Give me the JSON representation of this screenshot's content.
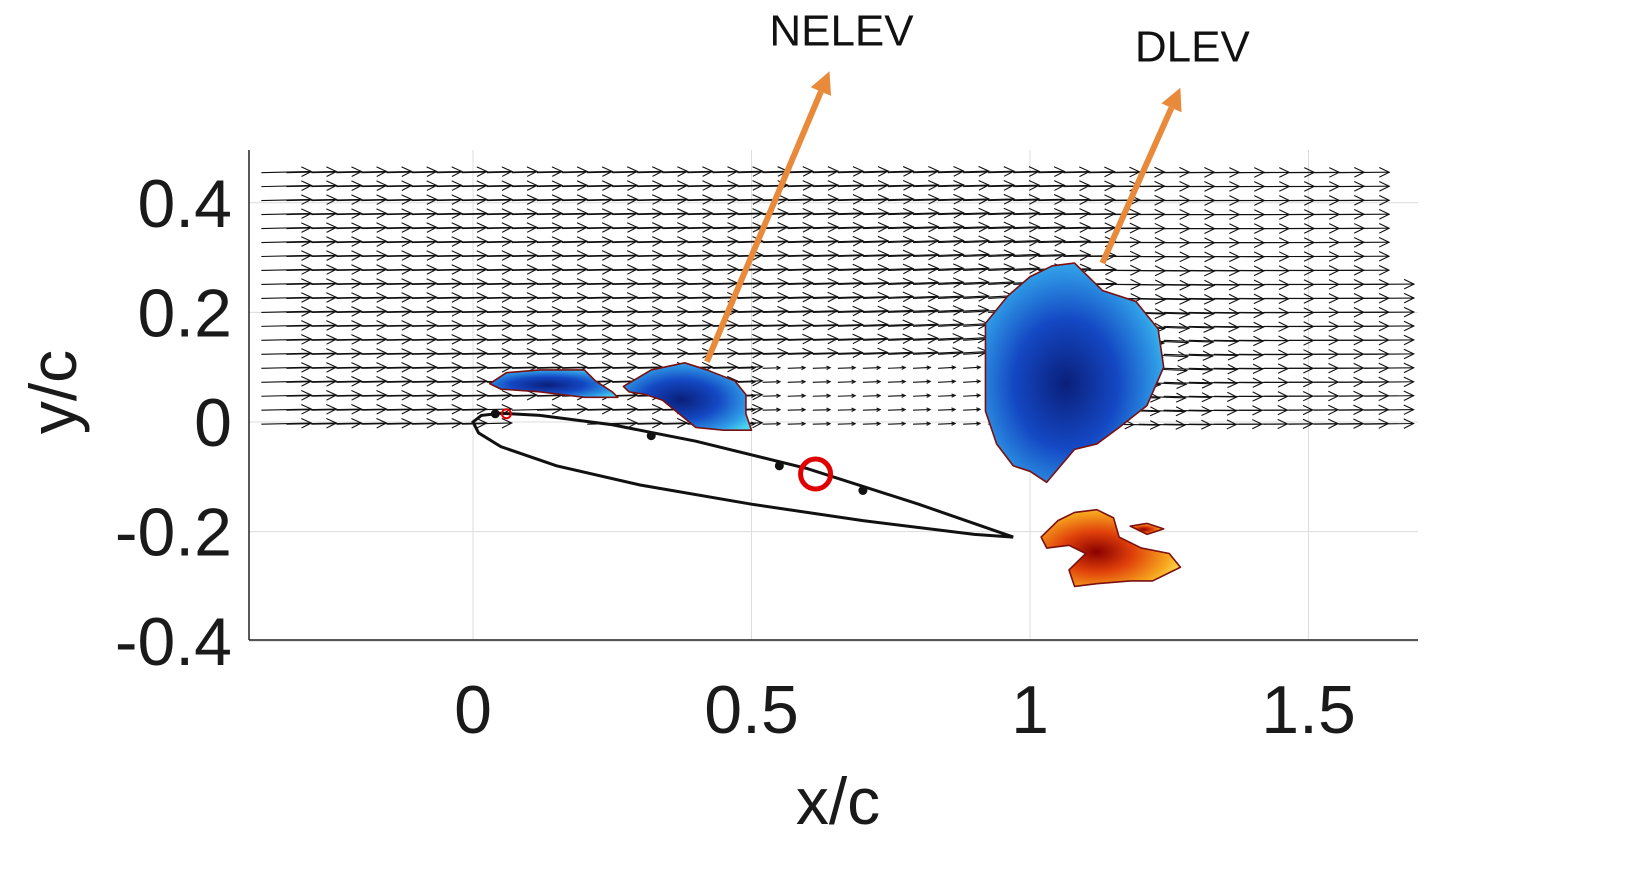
{
  "chart_data": {
    "type": "scatter",
    "title": "",
    "xlabel": "x/c",
    "ylabel": "y/c",
    "xlim": [
      -0.4,
      1.7
    ],
    "ylim": [
      -0.4,
      0.5
    ],
    "xticks": [
      0,
      0.5,
      1,
      1.5
    ],
    "xtick_labels": [
      "0",
      "0.5",
      "1",
      "1.5"
    ],
    "yticks": [
      -0.4,
      -0.2,
      0,
      0.2,
      0.4
    ],
    "ytick_labels": [
      "-0.4",
      "-0.2",
      "0",
      "0.2",
      "0.4"
    ],
    "grid": true,
    "series": [
      {
        "name": "airfoil",
        "kind": "line",
        "color": "#111111",
        "x": [
          0.97,
          0.8,
          0.6,
          0.4,
          0.25,
          0.12,
          0.05,
          0.015,
          0.0,
          0.01,
          0.05,
          0.15,
          0.3,
          0.5,
          0.7,
          0.9,
          0.97
        ],
        "y": [
          -0.21,
          -0.15,
          -0.085,
          -0.035,
          -0.005,
          0.012,
          0.016,
          0.012,
          0.0,
          -0.02,
          -0.045,
          -0.08,
          -0.115,
          -0.15,
          -0.18,
          -0.205,
          -0.21
        ]
      },
      {
        "name": "surface-markers",
        "kind": "scatter",
        "color": "#111111",
        "x": [
          0.04,
          0.32,
          0.55,
          0.7
        ],
        "y": [
          0.015,
          -0.025,
          -0.08,
          -0.125
        ]
      },
      {
        "name": "pivot-point",
        "kind": "scatter",
        "color": "#e00000",
        "x": [
          0.615
        ],
        "y": [
          -0.095
        ]
      },
      {
        "name": "small-reference",
        "kind": "scatter",
        "color": "#e00000",
        "x": [
          0.06
        ],
        "y": [
          0.015
        ]
      }
    ],
    "vorticity_regions": [
      {
        "name": "NELEV-upper-left",
        "sign": "negative",
        "fill": "#1a3fb8",
        "x": [
          0.03,
          0.06,
          0.12,
          0.2,
          0.22,
          0.25,
          0.26,
          0.2,
          0.12,
          0.05,
          0.03
        ],
        "y": [
          0.07,
          0.09,
          0.095,
          0.095,
          0.075,
          0.055,
          0.045,
          0.045,
          0.055,
          0.06,
          0.07
        ]
      },
      {
        "name": "NELEV-upper-right",
        "sign": "negative",
        "fill": "#102c9e",
        "x": [
          0.27,
          0.32,
          0.38,
          0.42,
          0.47,
          0.49,
          0.49,
          0.5,
          0.45,
          0.4,
          0.37,
          0.34,
          0.31,
          0.28,
          0.27
        ],
        "y": [
          0.065,
          0.095,
          0.108,
          0.095,
          0.075,
          0.05,
          0.015,
          -0.015,
          -0.015,
          -0.01,
          0.015,
          0.04,
          0.05,
          0.055,
          0.065
        ]
      },
      {
        "name": "DLEV",
        "sign": "negative",
        "fill": "#1d6fd6",
        "x": [
          0.92,
          0.96,
          1.0,
          1.04,
          1.08,
          1.13,
          1.19,
          1.23,
          1.24,
          1.21,
          1.16,
          1.12,
          1.08,
          1.03,
          1.0,
          0.97,
          0.94,
          0.92
        ],
        "y": [
          0.18,
          0.23,
          0.265,
          0.285,
          0.29,
          0.24,
          0.22,
          0.17,
          0.1,
          0.03,
          -0.01,
          -0.04,
          -0.05,
          -0.11,
          -0.09,
          -0.08,
          -0.04,
          0.02
        ]
      },
      {
        "name": "positive-wake-main",
        "sign": "positive",
        "fill": "#f2a21a",
        "x": [
          1.05,
          1.08,
          1.12,
          1.15,
          1.16,
          1.2,
          1.25,
          1.27,
          1.22,
          1.18,
          1.12,
          1.08,
          1.07,
          1.1,
          1.07,
          1.03,
          1.02,
          1.05
        ],
        "y": [
          -0.18,
          -0.165,
          -0.16,
          -0.175,
          -0.21,
          -0.23,
          -0.24,
          -0.265,
          -0.29,
          -0.29,
          -0.295,
          -0.3,
          -0.27,
          -0.24,
          -0.225,
          -0.23,
          -0.21,
          -0.18
        ]
      },
      {
        "name": "positive-wake-small",
        "sign": "positive",
        "fill": "#f7b32a",
        "x": [
          1.18,
          1.21,
          1.24,
          1.21,
          1.18
        ],
        "y": [
          -0.19,
          -0.185,
          -0.195,
          -0.205,
          -0.19
        ]
      }
    ]
  },
  "annotations": [
    {
      "label": "NELEV",
      "tail_x": 0.42,
      "tail_y": 0.11,
      "head_x": 0.64,
      "head_y": 0.64
    },
    {
      "label": "DLEV",
      "tail_x": 1.13,
      "tail_y": 0.29,
      "head_x": 1.27,
      "head_y": 0.61
    }
  ],
  "colors": {
    "arrow": "#e88a3a",
    "vector": "#111111",
    "grid": "#dcdcdc"
  }
}
